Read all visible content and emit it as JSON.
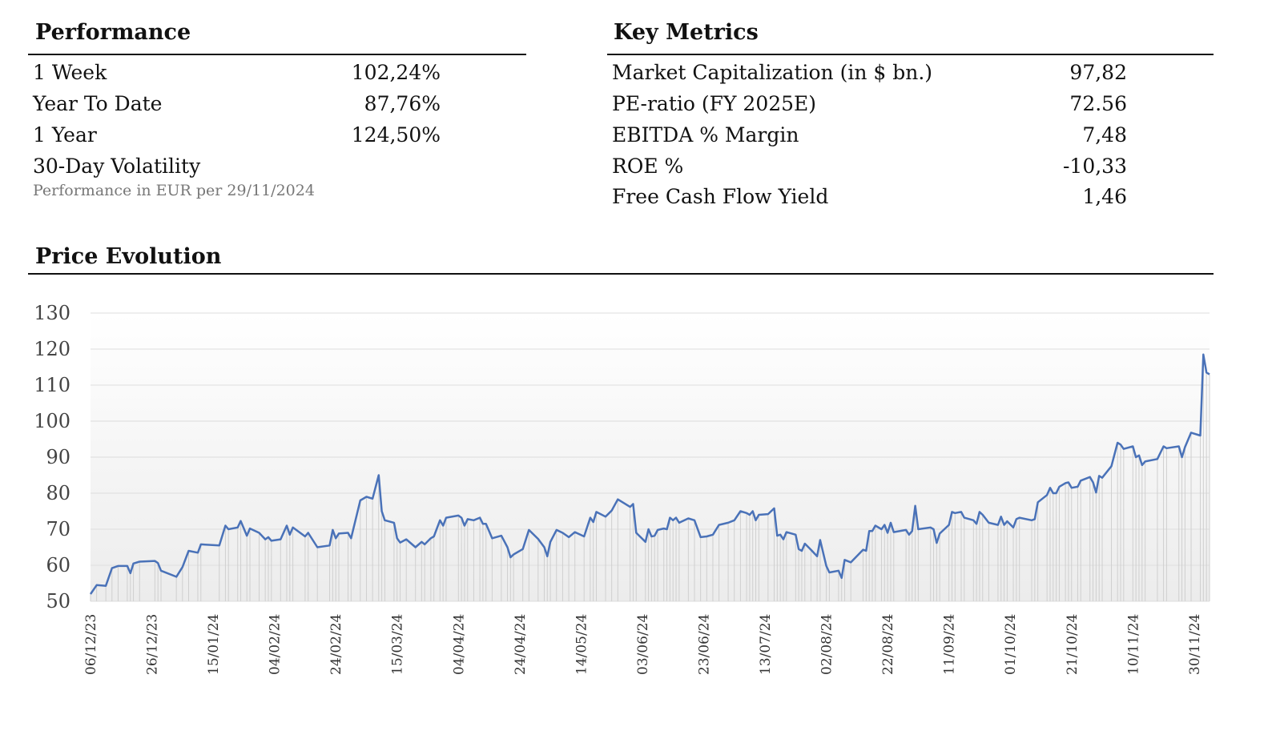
{
  "performance": {
    "title": "Performance",
    "rows": [
      {
        "label": "1 Week",
        "value": "102,24%"
      },
      {
        "label": "Year To Date",
        "value": "87,76%"
      },
      {
        "label": "1 Year",
        "value": "124,50%"
      },
      {
        "label": "30-Day Volatility",
        "value": ""
      }
    ],
    "note": "Performance in EUR per 29/11/2024"
  },
  "metrics": {
    "title": "Key Metrics",
    "rows": [
      {
        "label": "Market Capitalization (in $ bn.)",
        "value": "97,82"
      },
      {
        "label": "PE-ratio (FY 2025E)",
        "value": "72.56"
      },
      {
        "label": "EBITDA % Margin",
        "value": "7,48"
      },
      {
        "label": "ROE %",
        "value": "-10,33"
      },
      {
        "label": "Free Cash Flow Yield",
        "value": "1,46"
      }
    ]
  },
  "price_section": {
    "title": "Price Evolution"
  },
  "colors": {
    "line": "#4a72b8",
    "grid": "#dddddd"
  },
  "chart_data": {
    "type": "line",
    "title": "Price Evolution",
    "xlabel": "",
    "ylabel": "",
    "ylim": [
      50,
      130
    ],
    "yticks": [
      50,
      60,
      70,
      80,
      90,
      100,
      110,
      120,
      130
    ],
    "grid": true,
    "x_tick_labels": [
      "06/12/23",
      "26/12/23",
      "15/01/24",
      "04/02/24",
      "24/02/24",
      "15/03/24",
      "04/04/24",
      "24/04/24",
      "14/05/24",
      "03/06/24",
      "23/06/24",
      "13/07/24",
      "02/08/24",
      "22/08/24",
      "11/09/24",
      "01/10/24",
      "21/10/24",
      "10/11/24",
      "30/11/24"
    ],
    "series": [
      {
        "name": "",
        "points": [
          [
            "2023-12-06",
            52
          ],
          [
            "2023-12-08",
            54.5
          ],
          [
            "2023-12-11",
            54.3
          ],
          [
            "2023-12-13",
            59.2
          ],
          [
            "2023-12-15",
            59.8
          ],
          [
            "2023-12-18",
            59.8
          ],
          [
            "2023-12-19",
            57.8
          ],
          [
            "2023-12-20",
            60.5
          ],
          [
            "2023-12-22",
            61
          ],
          [
            "2023-12-27",
            61.2
          ],
          [
            "2023-12-28",
            60.6
          ],
          [
            "2023-12-29",
            58.5
          ],
          [
            "2024-01-03",
            56.8
          ],
          [
            "2024-01-05",
            59.5
          ],
          [
            "2024-01-07",
            64
          ],
          [
            "2024-01-10",
            63.5
          ],
          [
            "2024-01-11",
            65.8
          ],
          [
            "2024-01-17",
            65.5
          ],
          [
            "2024-01-19",
            71
          ],
          [
            "2024-01-20",
            70
          ],
          [
            "2024-01-23",
            70.5
          ],
          [
            "2024-01-24",
            72.3
          ],
          [
            "2024-01-26",
            68.2
          ],
          [
            "2024-01-27",
            70.2
          ],
          [
            "2024-01-30",
            69
          ],
          [
            "2024-02-01",
            67.2
          ],
          [
            "2024-02-02",
            67.8
          ],
          [
            "2024-02-03",
            66.8
          ],
          [
            "2024-02-06",
            67.2
          ],
          [
            "2024-02-08",
            71
          ],
          [
            "2024-02-09",
            68.5
          ],
          [
            "2024-02-10",
            70.5
          ],
          [
            "2024-02-14",
            68
          ],
          [
            "2024-02-15",
            69
          ],
          [
            "2024-02-18",
            65
          ],
          [
            "2024-02-22",
            65.5
          ],
          [
            "2024-02-23",
            69.8
          ],
          [
            "2024-02-24",
            67.5
          ],
          [
            "2024-02-25",
            68.8
          ],
          [
            "2024-02-28",
            69
          ],
          [
            "2024-02-29",
            67.5
          ],
          [
            "2024-03-03",
            78
          ],
          [
            "2024-03-05",
            79
          ],
          [
            "2024-03-07",
            78.5
          ],
          [
            "2024-03-09",
            85
          ],
          [
            "2024-03-10",
            75
          ],
          [
            "2024-03-11",
            72.5
          ],
          [
            "2024-03-14",
            71.8
          ],
          [
            "2024-03-15",
            67.5
          ],
          [
            "2024-03-16",
            66.3
          ],
          [
            "2024-03-18",
            67.2
          ],
          [
            "2024-03-21",
            65
          ],
          [
            "2024-03-23",
            66.5
          ],
          [
            "2024-03-24",
            65.8
          ],
          [
            "2024-03-26",
            67.5
          ],
          [
            "2024-03-27",
            68
          ],
          [
            "2024-03-29",
            72.5
          ],
          [
            "2024-03-30",
            71
          ],
          [
            "2024-03-31",
            73.2
          ],
          [
            "2024-04-04",
            73.8
          ],
          [
            "2024-04-05",
            73.2
          ],
          [
            "2024-04-06",
            71
          ],
          [
            "2024-04-07",
            72.8
          ],
          [
            "2024-04-09",
            72.5
          ],
          [
            "2024-04-11",
            73.2
          ],
          [
            "2024-04-12",
            71.5
          ],
          [
            "2024-04-13",
            71.5
          ],
          [
            "2024-04-15",
            67.5
          ],
          [
            "2024-04-18",
            68.2
          ],
          [
            "2024-04-20",
            65
          ],
          [
            "2024-04-21",
            62.2
          ],
          [
            "2024-04-22",
            63
          ],
          [
            "2024-04-25",
            64.5
          ],
          [
            "2024-04-27",
            69.8
          ],
          [
            "2024-04-30",
            67.3
          ],
          [
            "2024-05-02",
            65
          ],
          [
            "2024-05-03",
            62.5
          ],
          [
            "2024-05-04",
            66.5
          ],
          [
            "2024-05-06",
            69.8
          ],
          [
            "2024-05-08",
            69
          ],
          [
            "2024-05-10",
            67.8
          ],
          [
            "2024-05-12",
            69.2
          ],
          [
            "2024-05-15",
            68
          ],
          [
            "2024-05-17",
            73.2
          ],
          [
            "2024-05-18",
            72
          ],
          [
            "2024-05-19",
            74.8
          ],
          [
            "2024-05-22",
            73.5
          ],
          [
            "2024-05-24",
            75.2
          ],
          [
            "2024-05-26",
            78.3
          ],
          [
            "2024-05-30",
            76.2
          ],
          [
            "2024-05-31",
            77
          ],
          [
            "2024-06-01",
            69
          ],
          [
            "2024-06-04",
            66.5
          ],
          [
            "2024-06-05",
            70
          ],
          [
            "2024-06-06",
            68
          ],
          [
            "2024-06-07",
            68.2
          ],
          [
            "2024-06-08",
            69.8
          ],
          [
            "2024-06-10",
            70.2
          ],
          [
            "2024-06-11",
            70
          ],
          [
            "2024-06-12",
            73.2
          ],
          [
            "2024-06-13",
            72.5
          ],
          [
            "2024-06-14",
            73.2
          ],
          [
            "2024-06-15",
            71.8
          ],
          [
            "2024-06-18",
            73
          ],
          [
            "2024-06-20",
            72.5
          ],
          [
            "2024-06-22",
            67.8
          ],
          [
            "2024-06-24",
            68
          ],
          [
            "2024-06-26",
            68.5
          ],
          [
            "2024-06-28",
            71.2
          ],
          [
            "2024-07-01",
            71.8
          ],
          [
            "2024-07-03",
            72.5
          ],
          [
            "2024-07-05",
            75
          ],
          [
            "2024-07-07",
            74.5
          ],
          [
            "2024-07-08",
            74
          ],
          [
            "2024-07-09",
            75
          ],
          [
            "2024-07-10",
            72.5
          ],
          [
            "2024-07-11",
            74
          ],
          [
            "2024-07-14",
            74.2
          ],
          [
            "2024-07-16",
            75.8
          ],
          [
            "2024-07-17",
            68.2
          ],
          [
            "2024-07-18",
            68.5
          ],
          [
            "2024-07-19",
            67.2
          ],
          [
            "2024-07-20",
            69.2
          ],
          [
            "2024-07-23",
            68.5
          ],
          [
            "2024-07-24",
            64.5
          ],
          [
            "2024-07-25",
            64
          ],
          [
            "2024-07-26",
            66
          ],
          [
            "2024-07-28",
            64.3
          ],
          [
            "2024-07-30",
            62.5
          ],
          [
            "2024-07-31",
            67
          ],
          [
            "2024-08-02",
            59.8
          ],
          [
            "2024-08-03",
            58
          ],
          [
            "2024-08-06",
            58.5
          ],
          [
            "2024-08-07",
            56.5
          ],
          [
            "2024-08-08",
            61.5
          ],
          [
            "2024-08-10",
            60.8
          ],
          [
            "2024-08-14",
            64.3
          ],
          [
            "2024-08-15",
            64
          ],
          [
            "2024-08-16",
            69.5
          ],
          [
            "2024-08-17",
            69.5
          ],
          [
            "2024-08-18",
            71
          ],
          [
            "2024-08-20",
            70
          ],
          [
            "2024-08-21",
            71.2
          ],
          [
            "2024-08-22",
            69
          ],
          [
            "2024-08-23",
            71.8
          ],
          [
            "2024-08-24",
            69.2
          ],
          [
            "2024-08-28",
            69.8
          ],
          [
            "2024-08-29",
            68.5
          ],
          [
            "2024-08-30",
            69.5
          ],
          [
            "2024-08-31",
            76.5
          ],
          [
            "2024-09-01",
            70
          ],
          [
            "2024-09-05",
            70.5
          ],
          [
            "2024-09-06",
            70
          ],
          [
            "2024-09-07",
            66.2
          ],
          [
            "2024-09-08",
            68.8
          ],
          [
            "2024-09-11",
            71.2
          ],
          [
            "2024-09-12",
            74.8
          ],
          [
            "2024-09-13",
            74.5
          ],
          [
            "2024-09-15",
            74.8
          ],
          [
            "2024-09-16",
            73.2
          ],
          [
            "2024-09-19",
            72.5
          ],
          [
            "2024-09-20",
            71.5
          ],
          [
            "2024-09-21",
            74.8
          ],
          [
            "2024-09-22",
            74
          ],
          [
            "2024-09-24",
            71.8
          ],
          [
            "2024-09-27",
            71.2
          ],
          [
            "2024-09-28",
            73.5
          ],
          [
            "2024-09-29",
            71.2
          ],
          [
            "2024-09-30",
            72.2
          ],
          [
            "2024-10-02",
            70.5
          ],
          [
            "2024-10-03",
            72.8
          ],
          [
            "2024-10-04",
            73.2
          ],
          [
            "2024-10-08",
            72.5
          ],
          [
            "2024-10-09",
            72.8
          ],
          [
            "2024-10-10",
            77.5
          ],
          [
            "2024-10-13",
            79.5
          ],
          [
            "2024-10-14",
            81.5
          ],
          [
            "2024-10-15",
            80
          ],
          [
            "2024-10-16",
            80
          ],
          [
            "2024-10-17",
            81.8
          ],
          [
            "2024-10-19",
            82.8
          ],
          [
            "2024-10-20",
            83
          ],
          [
            "2024-10-21",
            81.5
          ],
          [
            "2024-10-23",
            81.8
          ],
          [
            "2024-10-24",
            83.5
          ],
          [
            "2024-10-27",
            84.5
          ],
          [
            "2024-10-28",
            83
          ],
          [
            "2024-10-29",
            80.2
          ],
          [
            "2024-10-30",
            84.8
          ],
          [
            "2024-10-31",
            84.3
          ],
          [
            "2024-11-03",
            87.5
          ],
          [
            "2024-11-05",
            94
          ],
          [
            "2024-11-06",
            93.5
          ],
          [
            "2024-11-07",
            92.3
          ],
          [
            "2024-11-10",
            93
          ],
          [
            "2024-11-11",
            90
          ],
          [
            "2024-11-12",
            90.5
          ],
          [
            "2024-11-13",
            87.8
          ],
          [
            "2024-11-14",
            88.8
          ],
          [
            "2024-11-18",
            89.5
          ],
          [
            "2024-11-20",
            93
          ],
          [
            "2024-11-21",
            92.5
          ],
          [
            "2024-11-25",
            93
          ],
          [
            "2024-11-26",
            90
          ],
          [
            "2024-11-27",
            92.8
          ],
          [
            "2024-11-29",
            96.8
          ],
          [
            "2024-12-02",
            96
          ],
          [
            "2024-12-03",
            118.5
          ],
          [
            "2024-12-04",
            113.5
          ],
          [
            "2024-12-05",
            113
          ]
        ]
      }
    ]
  }
}
